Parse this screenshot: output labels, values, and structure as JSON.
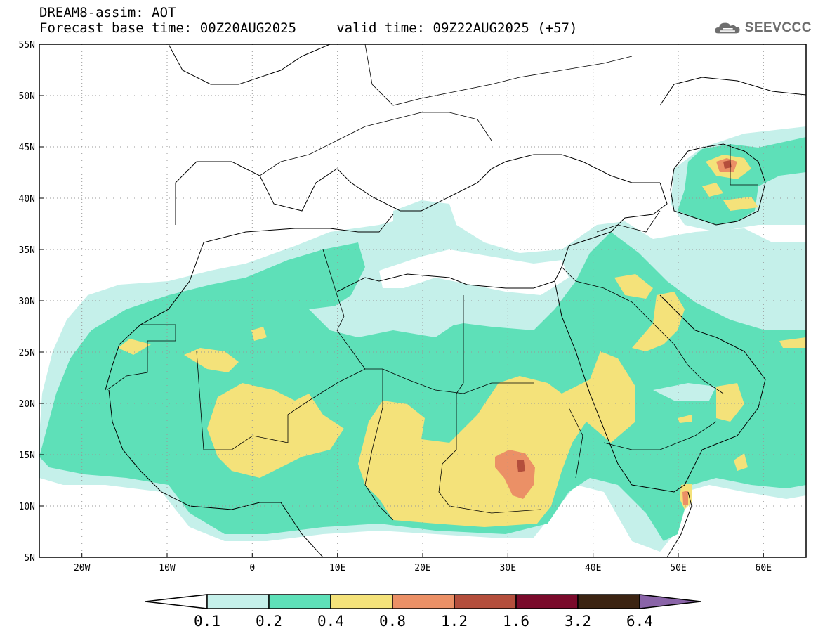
{
  "header": {
    "line1": "DREAM8-assim: AOT",
    "line2": "Forecast base time: 00Z20AUG2025     valid time: 09Z22AUG2025 (+57)"
  },
  "logo": {
    "text": "SEEVCCC",
    "icon": "cloud-icon"
  },
  "map": {
    "lon_range": [
      -25,
      65
    ],
    "lat_range": [
      5,
      55
    ],
    "lat_ticks": [
      "55N",
      "50N",
      "45N",
      "40N",
      "35N",
      "30N",
      "25N",
      "20N",
      "15N",
      "10N",
      "5N"
    ],
    "lon_ticks": [
      "20W",
      "10W",
      "0",
      "10E",
      "20E",
      "30E",
      "40E",
      "50E",
      "60E"
    ],
    "grid": "dotted"
  },
  "colorbar": {
    "labels": [
      "0.1",
      "0.2",
      "0.4",
      "0.8",
      "1.2",
      "1.6",
      "3.2",
      "6.4"
    ],
    "colors": [
      "#ffffff",
      "#c5f0ea",
      "#5ee0b8",
      "#f4e27a",
      "#eb9066",
      "#b44e3c",
      "#7a0a2b",
      "#3c2412",
      "#8a64a8"
    ]
  }
}
